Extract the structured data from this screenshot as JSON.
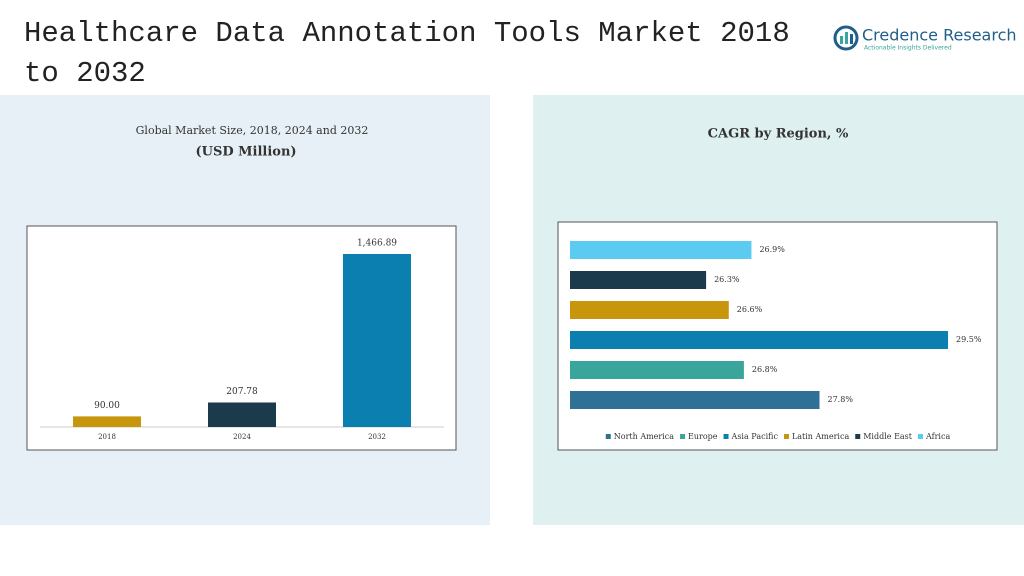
{
  "header": {
    "title": "Healthcare Data Annotation Tools Market 2018 to 2032",
    "brand": "Credence Research",
    "tagline": "Actionable Insights Delivered"
  },
  "chart_data": [
    {
      "type": "bar",
      "title": "Global Market Size, 2018, 2024 and 2032",
      "subtitle": "(USD Million)",
      "categories": [
        "2018",
        "2024",
        "2032"
      ],
      "values": [
        90,
        207.78,
        1466.89
      ],
      "value_labels": [
        "90.00",
        "207.78",
        "1,466.89"
      ],
      "colors": [
        "#c8960c",
        "#1b3a4b",
        "#0a7fb0"
      ]
    },
    {
      "type": "hbar",
      "title": "CAGR by Region, %",
      "categories": [
        "North America",
        "Europe",
        "Asia Pacific",
        "Latin America",
        "Middle East",
        "Africa"
      ],
      "values": [
        27.8,
        26.8,
        29.5,
        26.6,
        26.3,
        26.9
      ],
      "value_labels": [
        "27.8%",
        "26.8%",
        "29.5%",
        "26.6%",
        "26.3%",
        "26.9%"
      ],
      "colors": [
        "#2e7096",
        "#3aa69b",
        "#0a7fb0",
        "#c8960c",
        "#1b3a4b",
        "#5ccbf2"
      ],
      "xlim": [
        24.5,
        29.6
      ],
      "legend": "bottom"
    }
  ]
}
